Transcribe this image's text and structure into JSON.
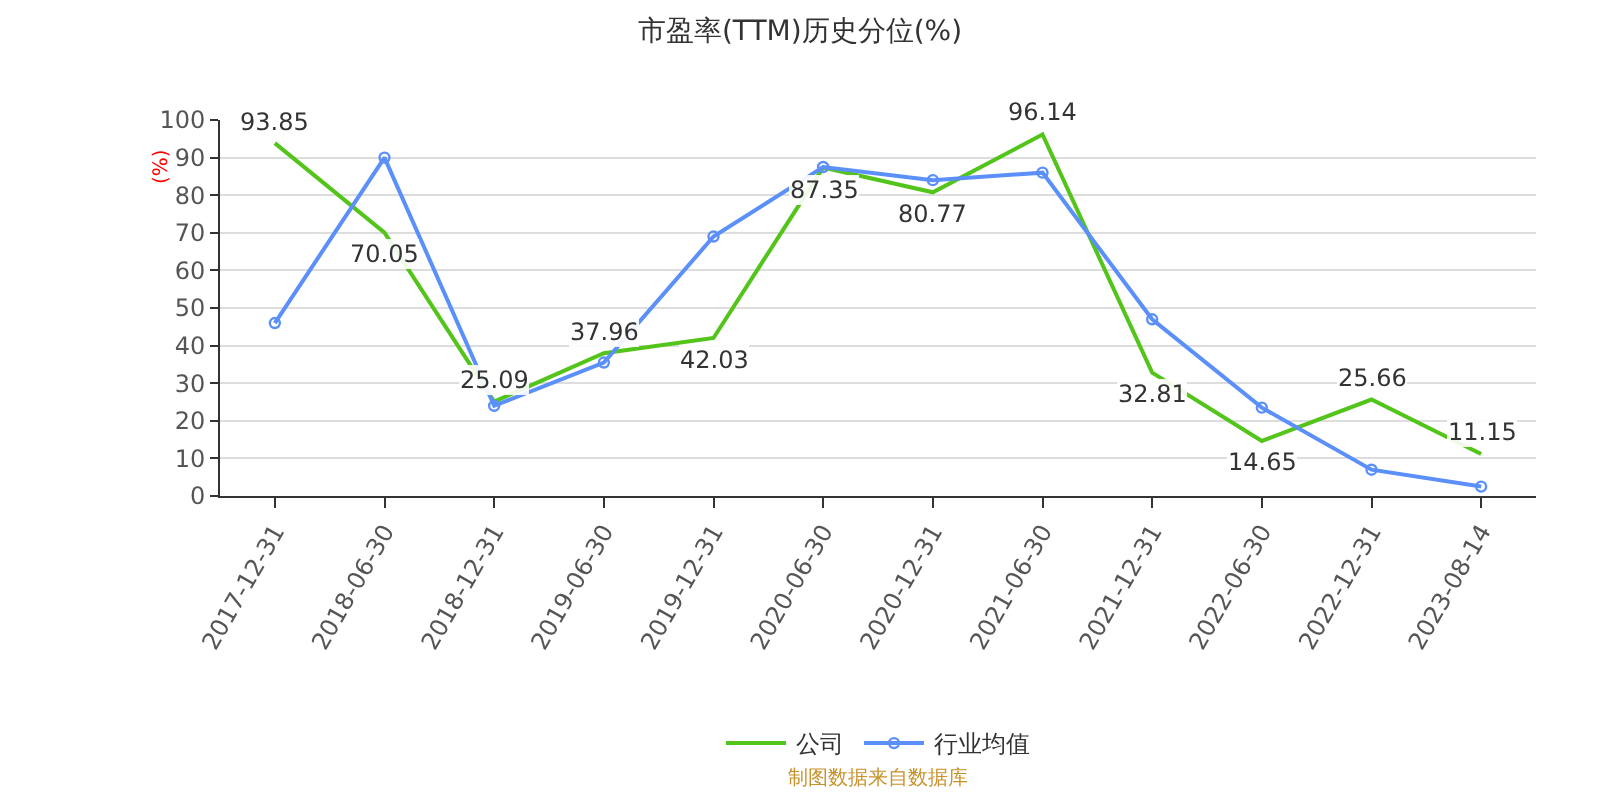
{
  "chart_data": {
    "type": "line",
    "title": "市盈率(TTM)历史分位(%)",
    "ylabel": "(%)",
    "categories": [
      "2017-12-31",
      "2018-06-30",
      "2018-12-31",
      "2019-06-30",
      "2019-12-31",
      "2020-06-30",
      "2020-12-31",
      "2021-06-30",
      "2021-12-31",
      "2022-06-30",
      "2022-12-31",
      "2023-08-14"
    ],
    "series": [
      {
        "name": "公司",
        "color": "#52c41a",
        "marker": "none",
        "values": [
          93.85,
          70.05,
          25.09,
          37.96,
          42.03,
          87.35,
          80.77,
          96.14,
          32.81,
          14.65,
          25.66,
          11.15
        ],
        "value_labels": [
          "93.85",
          "70.05",
          "25.09",
          "37.96",
          "42.03",
          "87.35",
          "80.77",
          "96.14",
          "32.81",
          "14.65",
          "25.66",
          "11.15"
        ]
      },
      {
        "name": "行业均值",
        "color": "#5b8ff9",
        "marker": "circle",
        "values": [
          46,
          90,
          24,
          35.5,
          69,
          87.5,
          84,
          86,
          47,
          23.5,
          7,
          2.5
        ]
      }
    ],
    "ylim": [
      0,
      100
    ],
    "yticks": [
      0,
      10,
      20,
      30,
      40,
      50,
      60,
      70,
      80,
      90,
      100
    ],
    "grid": "y",
    "legend": "bottom",
    "annotations": [
      "制图数据来自数据库"
    ]
  }
}
